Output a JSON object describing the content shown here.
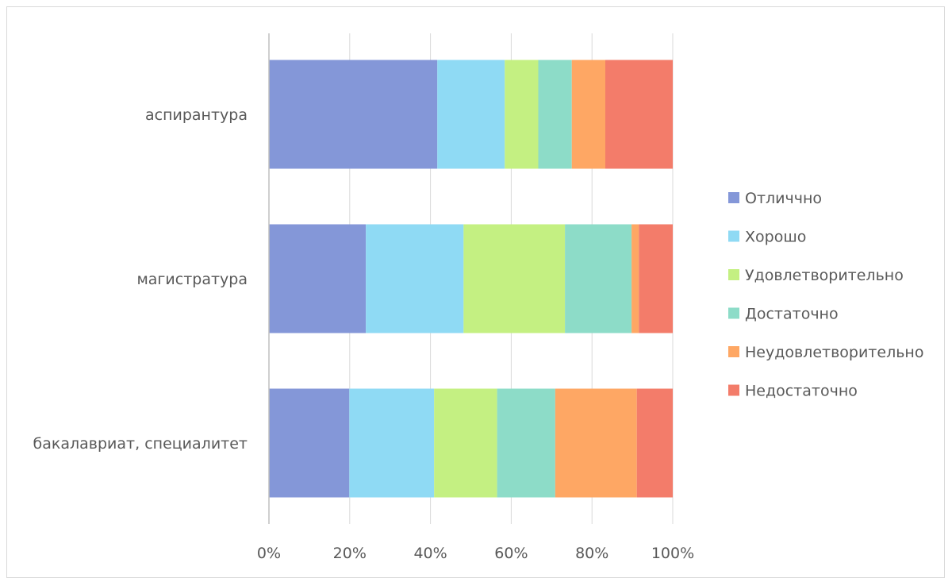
{
  "chart_data": {
    "type": "bar",
    "orientation": "horizontal",
    "stacked": "percent",
    "categories": [
      "аспирантура",
      "магистратура",
      "бакалавриат, специалитет"
    ],
    "series": [
      {
        "name": "Отличчно",
        "color": "#8497d8",
        "values": [
          41.7,
          24.0,
          19.9
        ]
      },
      {
        "name": "Хорошо",
        "color": "#8fdaf4",
        "values": [
          16.7,
          24.2,
          21.0
        ]
      },
      {
        "name": "Удовлетворительно",
        "color": "#c4f082",
        "values": [
          8.3,
          25.1,
          15.6
        ]
      },
      {
        "name": "Достаточно",
        "color": "#8ddcc8",
        "values": [
          8.3,
          16.5,
          14.4
        ]
      },
      {
        "name": "Неудовлетворительно",
        "color": "#fea764",
        "values": [
          8.3,
          1.8,
          20.2
        ]
      },
      {
        "name": "Недостаточно",
        "color": "#f37c6a",
        "values": [
          16.7,
          8.4,
          8.9
        ]
      }
    ],
    "x_ticks": [
      "0%",
      "20%",
      "40%",
      "60%",
      "80%",
      "100%"
    ],
    "xlim": [
      0,
      100
    ],
    "grid": true,
    "legend_position": "right"
  }
}
